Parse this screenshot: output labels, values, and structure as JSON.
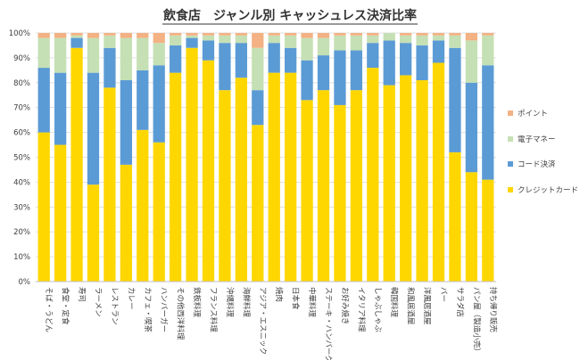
{
  "chart_data": {
    "type": "bar",
    "stacked": true,
    "title": "飲食店　ジャンル別 キャッシュレス決済比率",
    "y_ticks": [
      "0%",
      "10%",
      "20%",
      "30%",
      "40%",
      "50%",
      "60%",
      "70%",
      "80%",
      "90%",
      "100%"
    ],
    "ylim": [
      0,
      100
    ],
    "grid": true,
    "legend_position": "right",
    "categories": [
      "そば・うどん",
      "食堂・定食",
      "寿司",
      "ラーメン",
      "レストラン",
      "カレー",
      "カフェ・喫茶",
      "ハンバーガー",
      "その他西洋料理",
      "鉄板料理",
      "フランス料理",
      "沖縄料理",
      "海鮮料理",
      "アジア・エスニック",
      "焼肉",
      "日本食",
      "中華料理",
      "ステーキ・ハンバーグ",
      "お好み焼き",
      "イタリア料理",
      "しゃぶしゃぶ",
      "韓国料理",
      "和風居酒屋",
      "洋風居酒屋",
      "バー",
      "サラダ店",
      "パン屋（製造小売）",
      "持ち帰り販売"
    ],
    "series": [
      {
        "name": "クレジットカード",
        "color": "#ffd700",
        "values": [
          60,
          55,
          94,
          39,
          78,
          47,
          61,
          56,
          84,
          94,
          89,
          77,
          82,
          63,
          84,
          84,
          73,
          77,
          71,
          77,
          86,
          79,
          83,
          81,
          88,
          52,
          44,
          41
        ]
      },
      {
        "name": "コード決済",
        "color": "#5b9bd5",
        "values": [
          26,
          29,
          4,
          45,
          16,
          34,
          24,
          31,
          11,
          4,
          8,
          19,
          14,
          14,
          12,
          10,
          16,
          14,
          22,
          16,
          10,
          18,
          13,
          14,
          9,
          42,
          36,
          46
        ]
      },
      {
        "name": "電子マネー",
        "color": "#c5e0b4",
        "values": [
          12,
          14,
          1,
          14,
          5,
          17,
          13,
          9,
          4,
          1,
          2,
          3,
          3,
          17,
          3,
          5,
          9,
          7,
          6,
          6,
          3,
          3,
          3,
          4,
          2,
          5,
          17,
          12
        ]
      },
      {
        "name": "ポイント",
        "color": "#f4b183",
        "values": [
          2,
          2,
          1,
          2,
          1,
          2,
          2,
          4,
          1,
          1,
          1,
          1,
          1,
          6,
          1,
          1,
          2,
          2,
          1,
          1,
          1,
          0,
          1,
          1,
          1,
          1,
          3,
          1
        ]
      }
    ]
  }
}
